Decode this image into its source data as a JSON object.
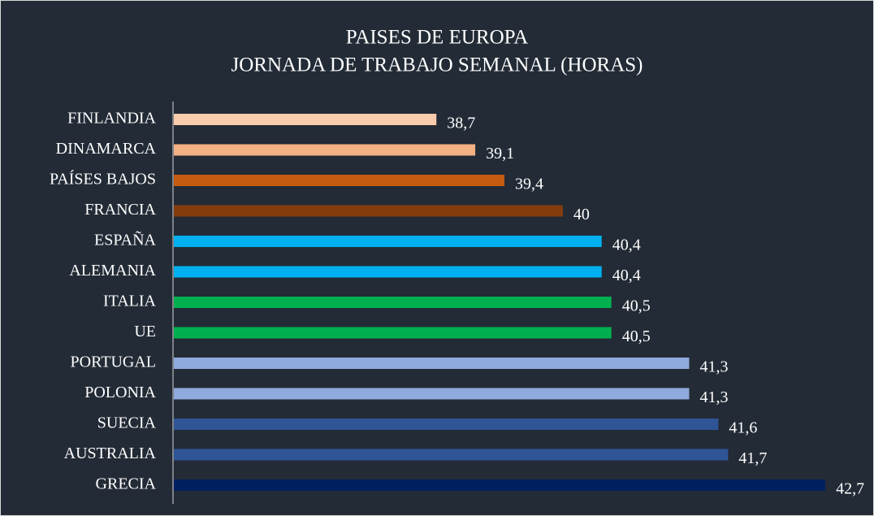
{
  "chart_data": {
    "type": "bar",
    "orientation": "horizontal",
    "title": [
      "PAISES DE EUROPA",
      "JORNADA DE TRABAJO SEMANAL (HORAS)"
    ],
    "categories": [
      "FINLANDIA",
      "DINAMARCA",
      "PAÍSES BAJOS",
      "FRANCIA",
      "ESPAÑA",
      "ALEMANIA",
      "ITALIA",
      "UE",
      "PORTUGAL",
      "POLONIA",
      "SUECIA",
      "AUSTRALIA",
      "GRECIA"
    ],
    "values": [
      38.7,
      39.1,
      39.4,
      40,
      40.4,
      40.4,
      40.5,
      40.5,
      41.3,
      41.3,
      41.6,
      41.7,
      42.7
    ],
    "value_labels": [
      "38,7",
      "39,1",
      "39,4",
      "40",
      "40,4",
      "40,4",
      "40,5",
      "40,5",
      "41,3",
      "41,3",
      "41,6",
      "41,7",
      "42,7"
    ],
    "colors": [
      "#f8cbad",
      "#f4b183",
      "#c55a11",
      "#843c0c",
      "#00b0f0",
      "#00b0f0",
      "#00b050",
      "#00b050",
      "#8faadc",
      "#8faadc",
      "#2f5597",
      "#2f5597",
      "#002060"
    ],
    "xlim": [
      36,
      43
    ]
  }
}
